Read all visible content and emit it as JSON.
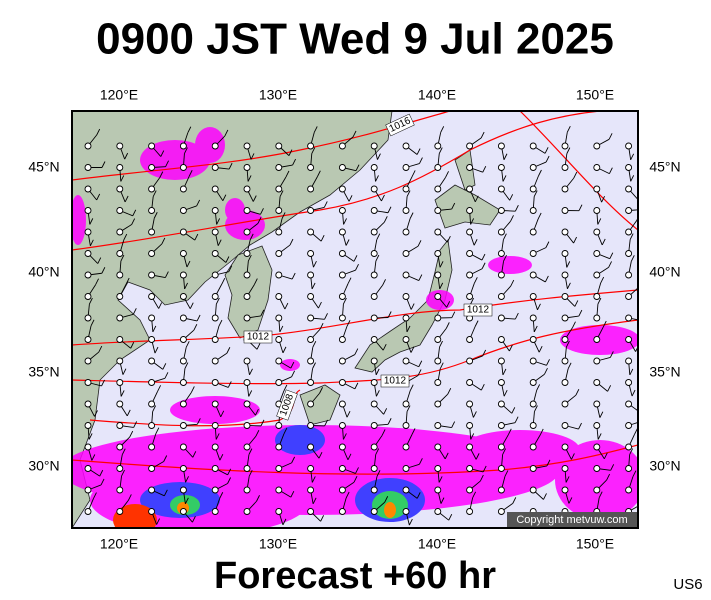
{
  "title": "0900 JST Wed 9 Jul 2025",
  "lon_labels": [
    "120°E",
    "130°E",
    "140°E",
    "150°E"
  ],
  "lat_labels": [
    "45°N",
    "40°N",
    "35°N",
    "30°N"
  ],
  "isobar_labels": [
    "1016",
    "1012",
    "1012",
    "1012",
    "1008"
  ],
  "copyright": "Copyright metvuw.com",
  "footer": "Forecast +60 hr",
  "code": "US6"
}
